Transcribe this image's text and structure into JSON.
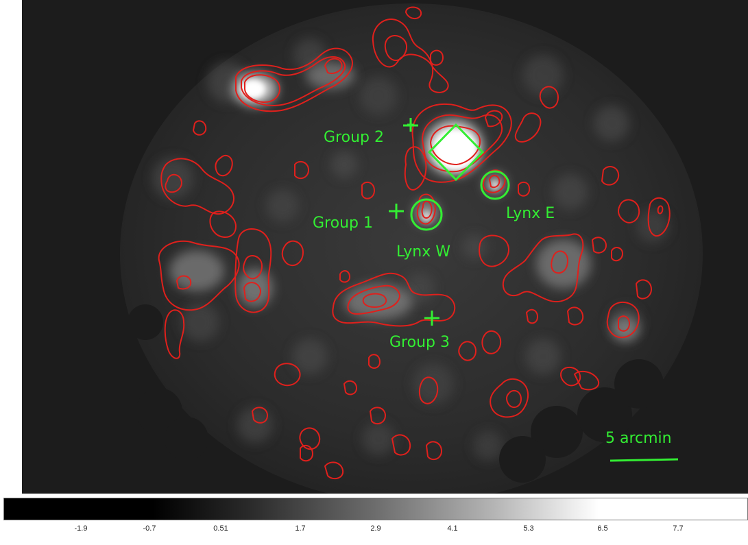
{
  "annotations": {
    "group1": "Group 1",
    "group2": "Group 2",
    "group3": "Group 3",
    "lynx_w": "Lynx W",
    "lynx_e": "Lynx E",
    "scale_bar": "5 arcmin"
  },
  "colorbar": {
    "ticks": [
      "-1.9",
      "-0.7",
      "0.51",
      "1.7",
      "2.9",
      "4.1",
      "5.3",
      "6.5",
      "7.7"
    ]
  },
  "colors": {
    "contour": "#e0201c",
    "annotation": "#33ee33",
    "background": "#1a1a1a"
  }
}
